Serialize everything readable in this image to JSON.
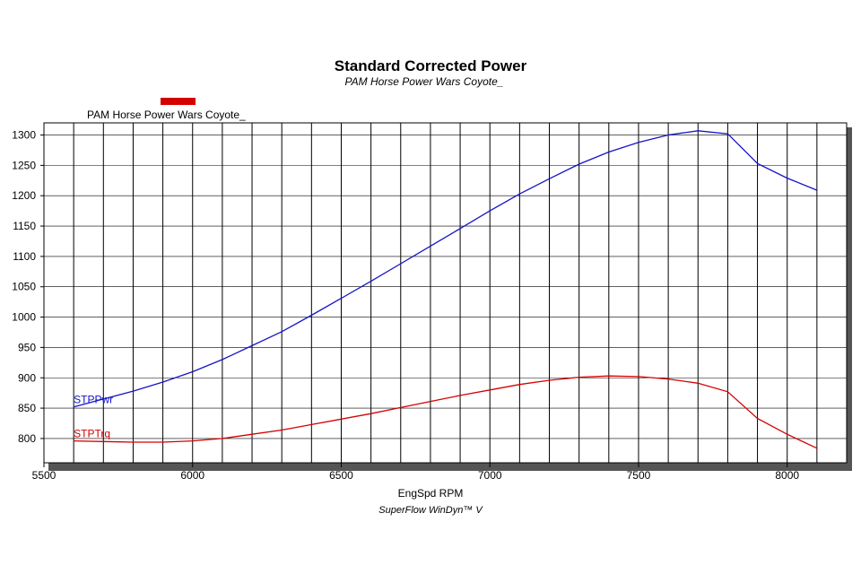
{
  "chart_data": {
    "type": "line",
    "title": "Standard Corrected Power",
    "subtitle": "PAM Horse Power Wars Coyote_",
    "xlabel": "EngSpd RPM",
    "ylabel": "",
    "footer": "SuperFlow WinDyn™ V",
    "legend": {
      "label": "PAM Horse Power Wars Coyote_",
      "color": "#d40000",
      "placement": "top-left"
    },
    "xlim": [
      5500,
      8200
    ],
    "ylim": [
      760,
      1320
    ],
    "xticks": [
      "5500",
      "6000",
      "6500",
      "7000",
      "7500",
      "8000"
    ],
    "yticks": [
      "800",
      "850",
      "900",
      "950",
      "1000",
      "1050",
      "1100",
      "1150",
      "1200",
      "1250",
      "1300"
    ],
    "grid": true,
    "series": [
      {
        "name": "STPPwr",
        "color": "#1414c8",
        "x": [
          5600,
          5700,
          5800,
          5900,
          6000,
          6100,
          6200,
          6300,
          6400,
          6500,
          6600,
          6700,
          6800,
          6900,
          7000,
          7100,
          7200,
          7300,
          7400,
          7500,
          7600,
          7700,
          7800,
          7900,
          8000,
          8100
        ],
        "y": [
          852,
          865,
          878,
          893,
          910,
          930,
          953,
          976,
          1003,
          1031,
          1059,
          1088,
          1117,
          1146,
          1175,
          1203,
          1228,
          1252,
          1272,
          1288,
          1300,
          1307,
          1302,
          1253,
          1229,
          1209
        ]
      },
      {
        "name": "STPTrq",
        "color": "#d40000",
        "x": [
          5600,
          5700,
          5800,
          5900,
          6000,
          6100,
          6200,
          6300,
          6400,
          6500,
          6600,
          6700,
          6800,
          6900,
          7000,
          7100,
          7200,
          7300,
          7400,
          7500,
          7600,
          7700,
          7800,
          7900,
          8000,
          8100
        ],
        "y": [
          796,
          795,
          794,
          794,
          796,
          800,
          807,
          814,
          823,
          832,
          841,
          851,
          861,
          871,
          880,
          889,
          896,
          901,
          903,
          902,
          898,
          891,
          877,
          833,
          807,
          784
        ]
      }
    ]
  }
}
